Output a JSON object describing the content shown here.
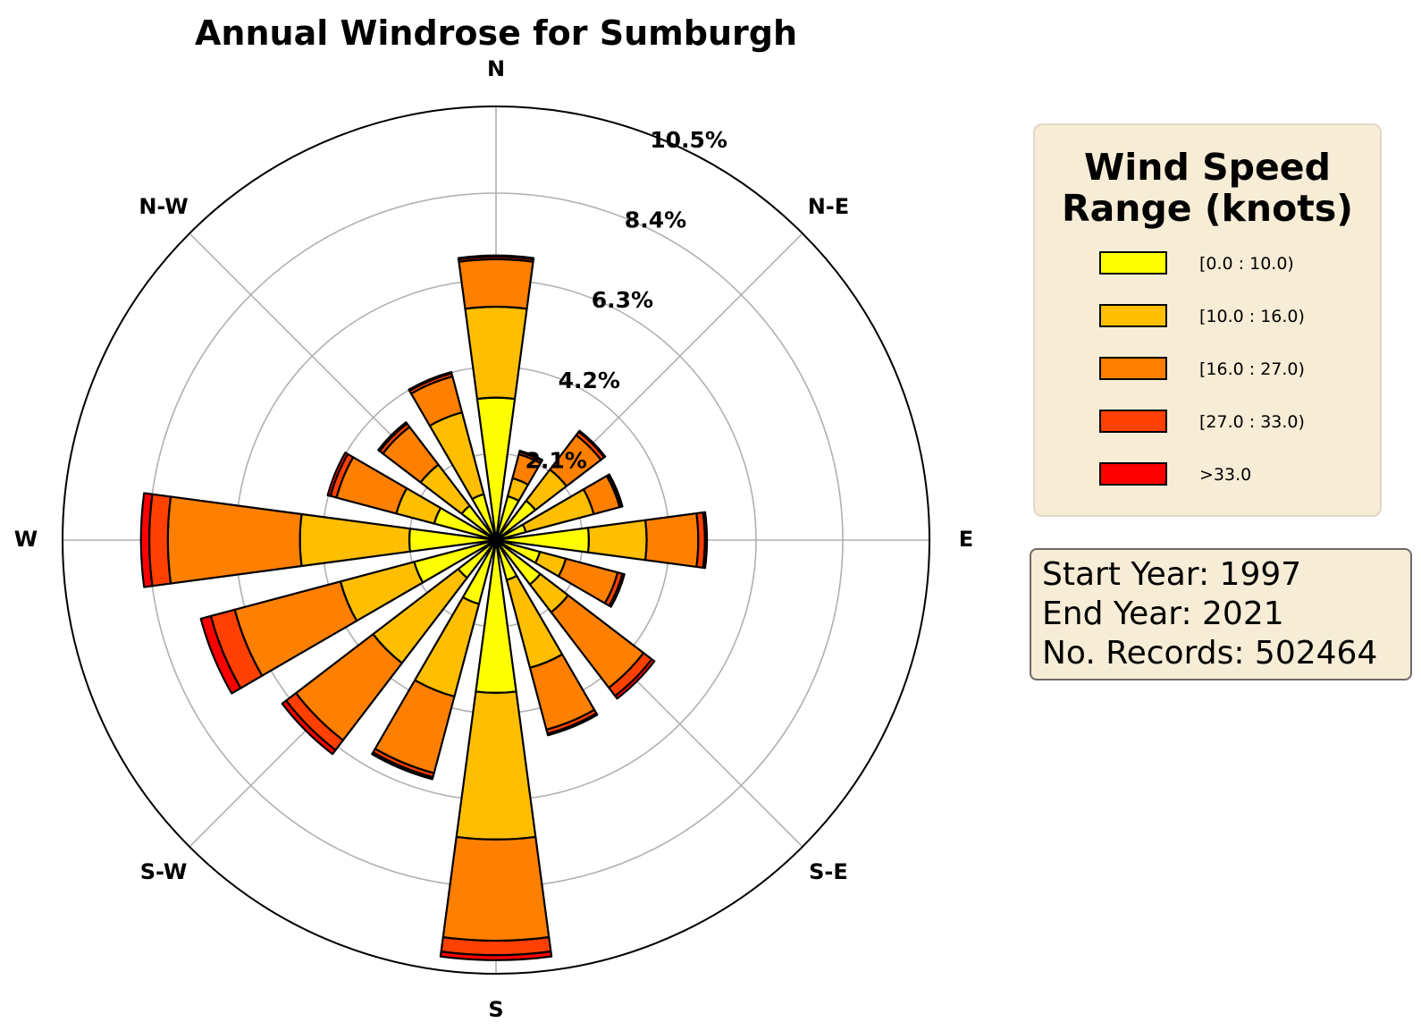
{
  "chart_data": {
    "type": "windrose",
    "title": "Annual Windrose for Sumburgh",
    "directions": [
      "N",
      "N-E",
      "E",
      "S-E",
      "S",
      "S-W",
      "W",
      "N-W"
    ],
    "radial_ticks": [
      "2.1%",
      "4.2%",
      "6.3%",
      "8.4%",
      "10.5%"
    ],
    "radial_tick_values": [
      2.1,
      4.2,
      6.3,
      8.4,
      10.5
    ],
    "rmax": 10.5,
    "sectors_deg": [
      0,
      22.5,
      45,
      67.5,
      90,
      112.5,
      135,
      157.5,
      180,
      202.5,
      225,
      247.5,
      270,
      292.5,
      315,
      337.5
    ],
    "legend_title": [
      "Wind Speed",
      "Range (knots)"
    ],
    "series": [
      {
        "name": "[0.0 : 10.0)",
        "color": "#ffff00",
        "values": [
          3.45,
          1.1,
          1.2,
          0.75,
          2.25,
          1.1,
          1.35,
          1.0,
          3.7,
          1.6,
          1.15,
          2.05,
          2.1,
          1.55,
          1.05,
          1.15
        ]
      },
      {
        "name": "[10.0 : 16.0)",
        "color": "#ffbf00",
        "values": [
          2.2,
          0.45,
          0.95,
          1.7,
          1.4,
          0.65,
          0.85,
          2.2,
          3.55,
          2.32,
          2.6,
          1.85,
          2.65,
          0.95,
          1.25,
          2.05
        ]
      },
      {
        "name": "[16.0 : 27.0)",
        "color": "#ff7f00",
        "values": [
          1.15,
          0.6,
          1.05,
          0.65,
          1.25,
          1.3,
          2.3,
          1.55,
          2.45,
          1.92,
          2.35,
          2.65,
          3.2,
          1.5,
          1.15,
          0.9
        ]
      },
      {
        "name": "[27.0 : 33.0)",
        "color": "#ff4000",
        "values": [
          0.06,
          0.06,
          0.1,
          0.05,
          0.16,
          0.12,
          0.25,
          0.1,
          0.35,
          0.1,
          0.3,
          0.6,
          0.45,
          0.15,
          0.1,
          0.08
        ]
      },
      {
        "name": ">33.0",
        "color": "#ff0000",
        "values": [
          0.03,
          0.03,
          0.03,
          0.02,
          0.05,
          0.05,
          0.08,
          0.04,
          0.12,
          0.05,
          0.12,
          0.25,
          0.2,
          0.07,
          0.04,
          0.03
        ]
      }
    ]
  },
  "info": {
    "start_year": "Start Year: 1997",
    "end_year": "End Year: 2021",
    "records": "No. Records: 502464"
  }
}
